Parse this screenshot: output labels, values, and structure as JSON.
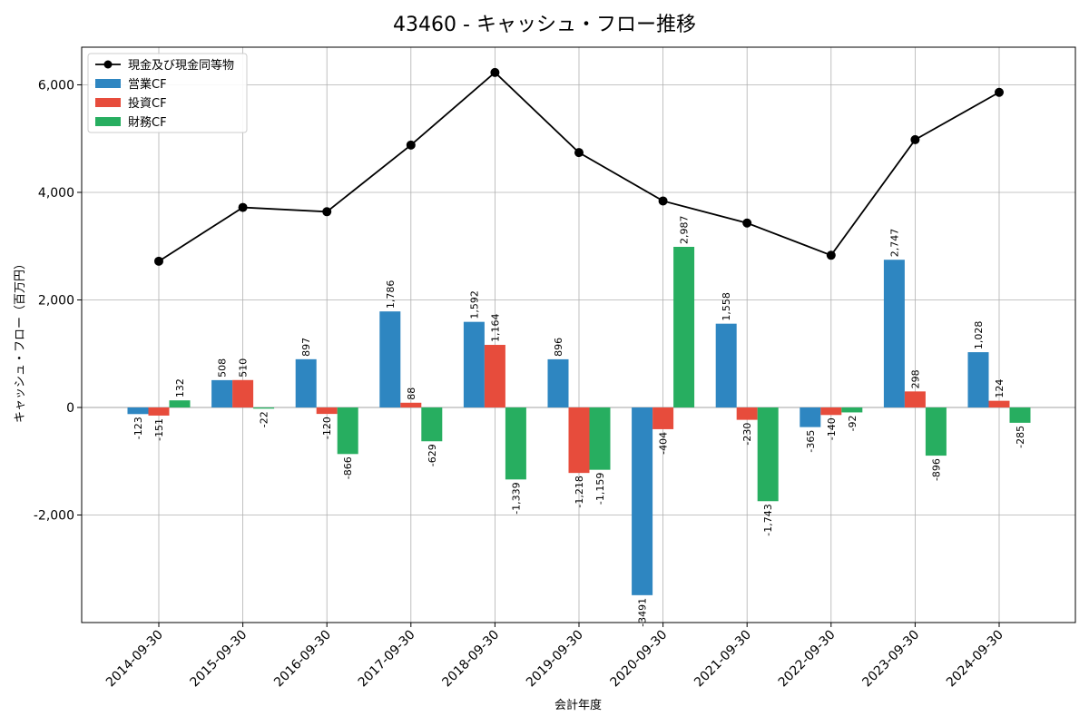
{
  "chart_data": {
    "type": "bar",
    "title": "43460 - キャッシュ・フロー推移",
    "xlabel": "会計年度",
    "ylabel": "キャッシュ・フロー（百万円）",
    "categories": [
      "2014-09-30",
      "2015-09-30",
      "2016-09-30",
      "2017-09-30",
      "2018-09-30",
      "2019-09-30",
      "2020-09-30",
      "2021-09-30",
      "2022-09-30",
      "2023-09-30",
      "2024-09-30"
    ],
    "ylim": [
      -4000,
      6700
    ],
    "yticks": [
      -2000,
      0,
      2000,
      4000,
      6000
    ],
    "ytick_labels": [
      "-2,000",
      "0",
      "2,000",
      "4,000",
      "6,000"
    ],
    "grid": true,
    "legend_position": "top-left",
    "series": [
      {
        "name": "現金及び現金同等物",
        "type": "line",
        "color": "#000000",
        "values": [
          2720,
          3720,
          3640,
          4880,
          6230,
          4740,
          3840,
          3430,
          2830,
          4980,
          5860
        ]
      },
      {
        "name": "営業CF",
        "type": "bar",
        "color": "#2e86c1",
        "values": [
          -123,
          508,
          897,
          1786,
          1592,
          896,
          -3491,
          1558,
          -365,
          2747,
          1028
        ],
        "labels": [
          "-123",
          "508",
          "897",
          "1,786",
          "1,592",
          "896",
          "-3491",
          "1,558",
          "-365",
          "2,747",
          "1,028"
        ]
      },
      {
        "name": "投資CF",
        "type": "bar",
        "color": "#e74c3c",
        "values": [
          -151,
          510,
          -120,
          88,
          1164,
          -1218,
          -404,
          -230,
          -140,
          298,
          124
        ],
        "labels": [
          "-151",
          "510",
          "-120",
          "88",
          "1,164",
          "-1,218",
          "-404",
          "-230",
          "-140",
          "298",
          "124"
        ]
      },
      {
        "name": "財務CF",
        "type": "bar",
        "color": "#27ae60",
        "values": [
          132,
          -22,
          -866,
          -629,
          -1339,
          -1159,
          2987,
          -1743,
          -92,
          -896,
          -285
        ],
        "labels": [
          "132",
          "-22",
          "-866",
          "-629",
          "-1,339",
          "-1,159",
          "2,987",
          "-1,743",
          "-92",
          "-896",
          "-285"
        ]
      }
    ]
  }
}
